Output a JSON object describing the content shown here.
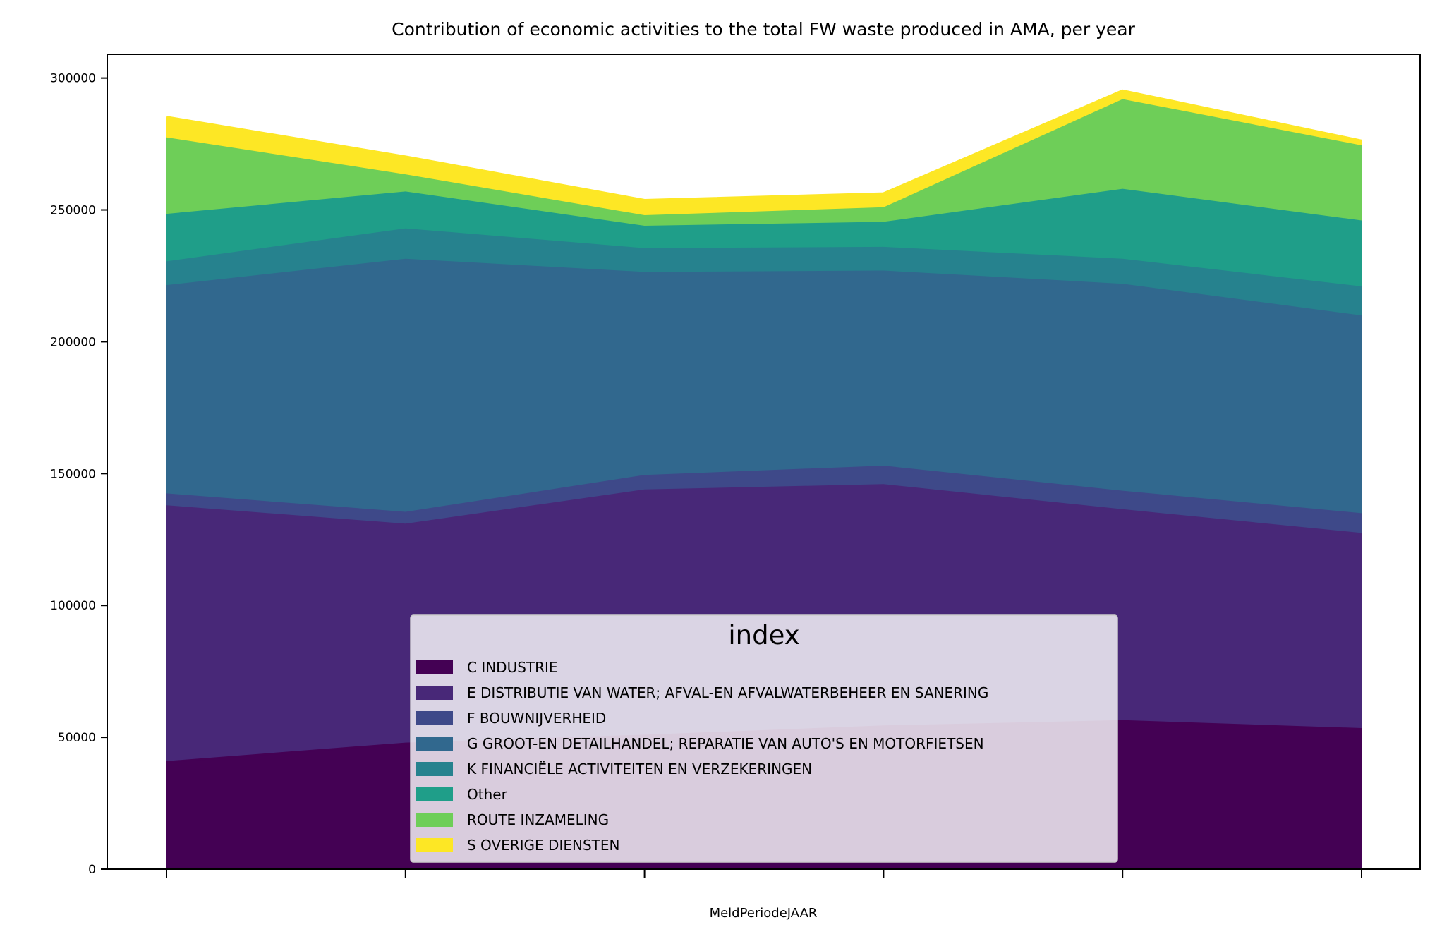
{
  "chart_data": {
    "type": "area",
    "stacked": true,
    "title": "Contribution of economic activities to the total FW waste produced in AMA, per year",
    "xlabel": "MeldPeriodeJAAR",
    "ylabel": "",
    "x": [
      0,
      1,
      2,
      3,
      4,
      5
    ],
    "ylim": [
      0,
      309000
    ],
    "yticks": [
      0,
      50000,
      100000,
      150000,
      200000,
      250000,
      300000
    ],
    "grid": false,
    "legend": {
      "title": "index",
      "placement": "lower-center"
    },
    "series": [
      {
        "name": "C INDUSTRIE",
        "color": "#440154",
        "values": [
          41000,
          48000,
          51000,
          54500,
          56500,
          53500
        ]
      },
      {
        "name": "E DISTRIBUTIE VAN WATER; AFVAL-EN AFVALWATERBEHEER EN SANERING",
        "color": "#482878",
        "values": [
          97000,
          83000,
          93000,
          91500,
          80000,
          74000
        ]
      },
      {
        "name": "F BOUWNIJVERHEID",
        "color": "#3e4989",
        "values": [
          4500,
          4500,
          5500,
          7000,
          7000,
          7500
        ]
      },
      {
        "name": "G GROOT-EN DETAILHANDEL; REPARATIE VAN AUTO'S EN MOTORFIETSEN",
        "color": "#31688e",
        "values": [
          79000,
          96000,
          77000,
          74000,
          78500,
          75000
        ]
      },
      {
        "name": "K FINANCIËLE ACTIVITEITEN EN VERZEKERINGEN",
        "color": "#26828e",
        "values": [
          9000,
          11500,
          9000,
          9000,
          9500,
          11000
        ]
      },
      {
        "name": "Other",
        "color": "#1f9e89",
        "values": [
          18000,
          14000,
          8500,
          9500,
          26500,
          25000
        ]
      },
      {
        "name": "ROUTE INZAMELING",
        "color": "#6ece58",
        "values": [
          29000,
          6500,
          4000,
          5500,
          34000,
          28500
        ]
      },
      {
        "name": "S OVERIGE DIENSTEN",
        "color": "#fde725",
        "values": [
          7500,
          6500,
          5500,
          5000,
          3000,
          1500
        ]
      }
    ]
  }
}
